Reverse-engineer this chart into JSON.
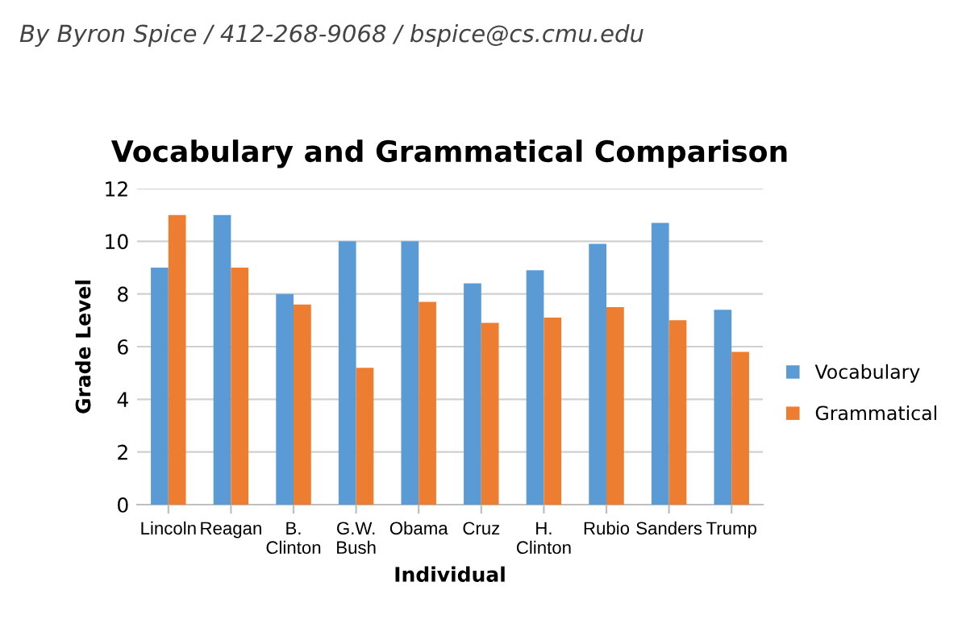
{
  "chart_data": {
    "type": "bar",
    "title": "Vocabulary and Grammatical Comparison",
    "annotations": [
      "By Byron Spice / 412-268-9068 / bspice@cs.cmu.edu"
    ],
    "xlabel": "Individual",
    "ylabel": "Grade Level",
    "categories": [
      "Lincoln",
      "Reagan",
      "B.\nClinton",
      "G.W.\nBush",
      "Obama",
      "Cruz",
      "H.\nClinton",
      "Rubio",
      "Sanders",
      "Trump"
    ],
    "series": [
      {
        "name": "Vocabulary",
        "color": "#5b9bd5",
        "values": [
          9,
          11,
          8,
          10,
          10,
          8.4,
          8.9,
          9.9,
          10.7,
          7.4
        ]
      },
      {
        "name": "Grammatical",
        "color": "#ed7d31",
        "values": [
          11,
          9,
          7.6,
          5.2,
          7.7,
          6.9,
          7.1,
          7.5,
          7.0,
          5.8
        ]
      }
    ],
    "ylim": [
      0,
      12
    ],
    "yticks": [
      0,
      2,
      4,
      6,
      8,
      10,
      12
    ],
    "grid": "y",
    "legend": "right"
  }
}
